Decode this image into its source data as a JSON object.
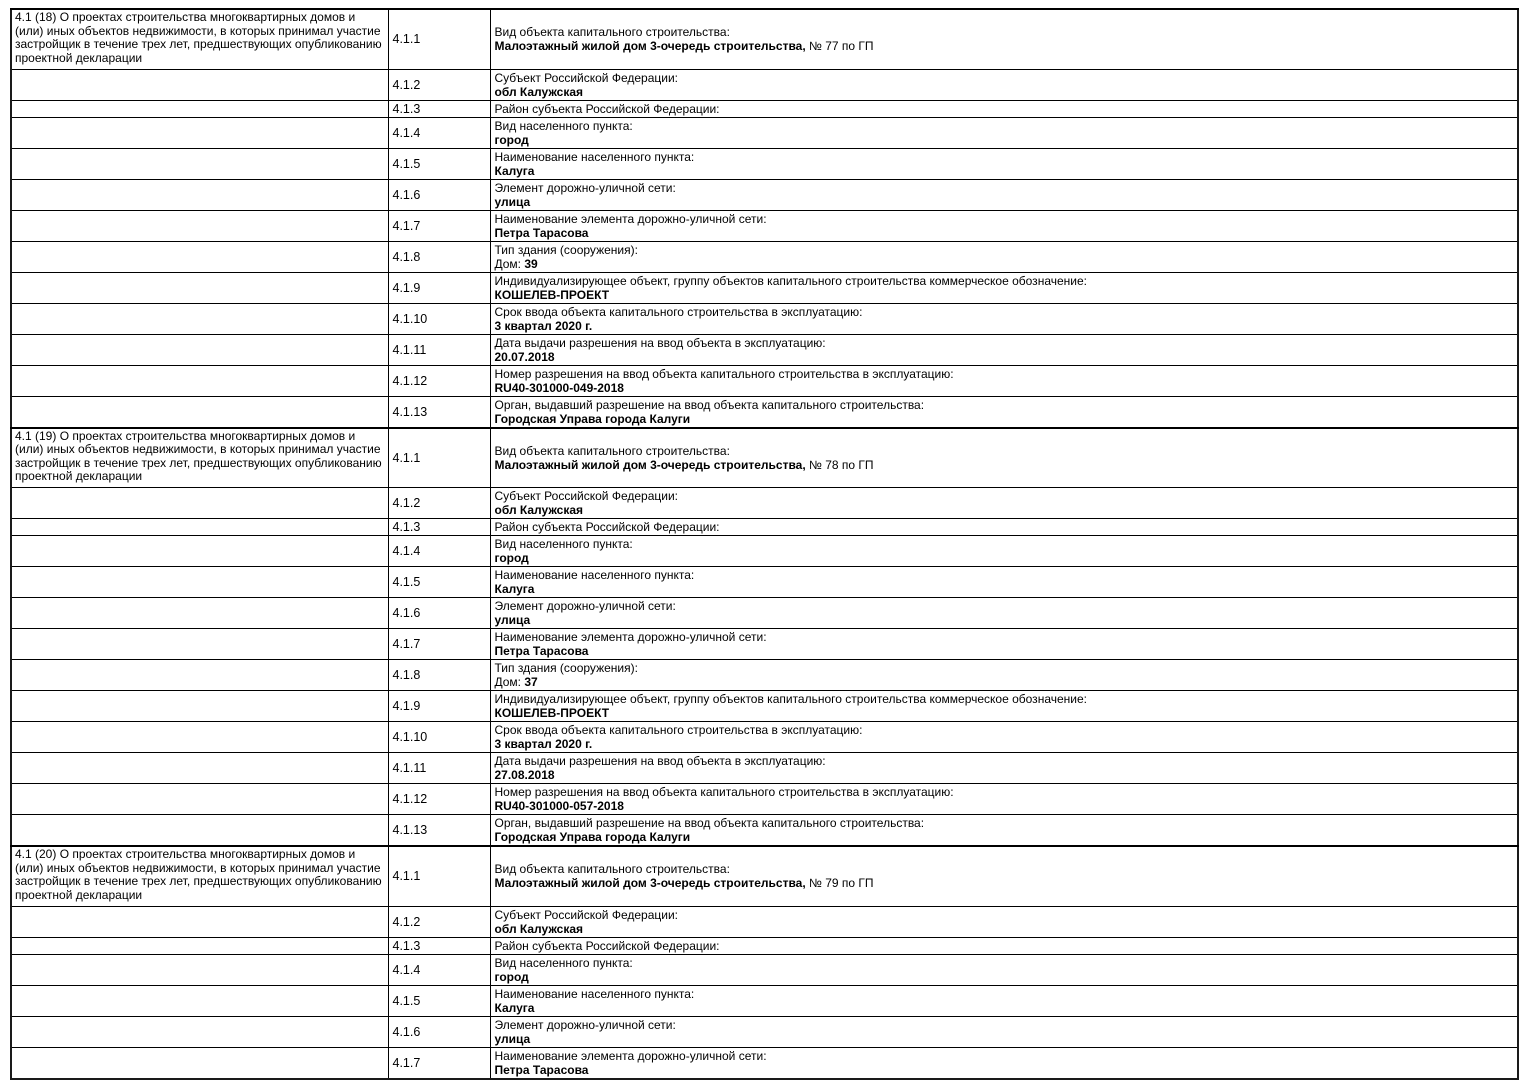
{
  "page": {
    "background": "#ffffff",
    "border_color": "#000000",
    "text_color": "#000000"
  },
  "table": {
    "columns": [
      "section-description",
      "item-code",
      "item-content"
    ],
    "sections": [
      {
        "header": "4.1 (18) О проектах строительства многоквартирных домов и (или) иных объектов недвижимости, в которых принимал участие застройщик в течение трех лет, предшествующих опубликованию проектной декларации",
        "rows": [
          {
            "code": "4.1.1",
            "label": "Вид объекта капитального строительства:",
            "pre": "",
            "value": "Малоэтажный жилой дом 3-очередь строительства,",
            "suffix": " № 77 по ГП"
          },
          {
            "code": "4.1.2",
            "label": "Субъект Российской Федерации:",
            "pre": "",
            "value": "обл Калужская",
            "suffix": ""
          },
          {
            "code": "4.1.3",
            "label": "Район субъекта Российской Федерации:",
            "pre": "",
            "value": "",
            "suffix": ""
          },
          {
            "code": "4.1.4",
            "label": "Вид населенного пункта:",
            "pre": "",
            "value": "город",
            "suffix": ""
          },
          {
            "code": "4.1.5",
            "label": "Наименование населенного пункта:",
            "pre": "",
            "value": "Калуга",
            "suffix": ""
          },
          {
            "code": "4.1.6",
            "label": "Элемент дорожно-уличной сети:",
            "pre": "",
            "value": "улица",
            "suffix": ""
          },
          {
            "code": "4.1.7",
            "label": "Наименование элемента дорожно-уличной сети:",
            "pre": "",
            "value": "Петра Тарасова",
            "suffix": ""
          },
          {
            "code": "4.1.8",
            "label": "Тип здания (сооружения):",
            "pre": "Дом: ",
            "value": "39",
            "suffix": ""
          },
          {
            "code": "4.1.9",
            "label": "Индивидуализирующее объект, группу объектов капитального строительства коммерческое обозначение:",
            "pre": "",
            "value": "КОШЕЛЕВ-ПРОЕКТ",
            "suffix": ""
          },
          {
            "code": "4.1.10",
            "label": "Срок ввода объекта капитального строительства в эксплуатацию:",
            "pre": "",
            "value": "3 квартал 2020 г.",
            "suffix": ""
          },
          {
            "code": "4.1.11",
            "label": "Дата выдачи разрешения на ввод объекта в эксплуатацию:",
            "pre": "",
            "value": "20.07.2018",
            "suffix": ""
          },
          {
            "code": "4.1.12",
            "label": "Номер разрешения на ввод объекта капитального строительства в эксплуатацию:",
            "pre": "",
            "value": "RU40-301000-049-2018",
            "suffix": ""
          },
          {
            "code": "4.1.13",
            "label": "Орган, выдавший разрешение на ввод объекта капитального строительства:",
            "pre": "",
            "value": "Городская Управа города Калуги",
            "suffix": ""
          }
        ]
      },
      {
        "header": "4.1 (19) О проектах строительства многоквартирных домов и (или) иных объектов недвижимости, в которых принимал участие застройщик в течение трех лет, предшествующих опубликованию проектной декларации",
        "rows": [
          {
            "code": "4.1.1",
            "label": "Вид объекта капитального строительства:",
            "pre": "",
            "value": "Малоэтажный жилой дом 3-очередь строительства,",
            "suffix": " № 78 по ГП"
          },
          {
            "code": "4.1.2",
            "label": "Субъект Российской Федерации:",
            "pre": "",
            "value": "обл Калужская",
            "suffix": ""
          },
          {
            "code": "4.1.3",
            "label": "Район субъекта Российской Федерации:",
            "pre": "",
            "value": "",
            "suffix": ""
          },
          {
            "code": "4.1.4",
            "label": "Вид населенного пункта:",
            "pre": "",
            "value": "город",
            "suffix": ""
          },
          {
            "code": "4.1.5",
            "label": "Наименование населенного пункта:",
            "pre": "",
            "value": "Калуга",
            "suffix": ""
          },
          {
            "code": "4.1.6",
            "label": "Элемент дорожно-уличной сети:",
            "pre": "",
            "value": "улица",
            "suffix": ""
          },
          {
            "code": "4.1.7",
            "label": "Наименование элемента дорожно-уличной сети:",
            "pre": "",
            "value": "Петра Тарасова",
            "suffix": ""
          },
          {
            "code": "4.1.8",
            "label": "Тип здания (сооружения):",
            "pre": "Дом: ",
            "value": "37",
            "suffix": ""
          },
          {
            "code": "4.1.9",
            "label": "Индивидуализирующее объект, группу объектов капитального строительства коммерческое обозначение:",
            "pre": "",
            "value": "КОШЕЛЕВ-ПРОЕКТ",
            "suffix": ""
          },
          {
            "code": "4.1.10",
            "label": "Срок ввода объекта капитального строительства в эксплуатацию:",
            "pre": "",
            "value": "3 квартал 2020 г.",
            "suffix": ""
          },
          {
            "code": "4.1.11",
            "label": "Дата выдачи разрешения на ввод объекта в эксплуатацию:",
            "pre": "",
            "value": "27.08.2018",
            "suffix": ""
          },
          {
            "code": "4.1.12",
            "label": "Номер разрешения на ввод объекта капитального строительства в эксплуатацию:",
            "pre": "",
            "value": "RU40-301000-057-2018",
            "suffix": ""
          },
          {
            "code": "4.1.13",
            "label": "Орган, выдавший разрешение на ввод объекта капитального строительства:",
            "pre": "",
            "value": "Городская Управа города Калуги",
            "suffix": ""
          }
        ]
      },
      {
        "header": "4.1 (20) О проектах строительства многоквартирных домов и (или) иных объектов недвижимости, в которых принимал участие застройщик в течение трех лет, предшествующих опубликованию проектной декларации",
        "rows": [
          {
            "code": "4.1.1",
            "label": "Вид объекта капитального строительства:",
            "pre": "",
            "value": "Малоэтажный жилой дом 3-очередь строительства,",
            "suffix": " № 79 по ГП"
          },
          {
            "code": "4.1.2",
            "label": "Субъект Российской Федерации:",
            "pre": "",
            "value": "обл Калужская",
            "suffix": ""
          },
          {
            "code": "4.1.3",
            "label": "Район субъекта Российской Федерации:",
            "pre": "",
            "value": "",
            "suffix": ""
          },
          {
            "code": "4.1.4",
            "label": "Вид населенного пункта:",
            "pre": "",
            "value": "город",
            "suffix": ""
          },
          {
            "code": "4.1.5",
            "label": "Наименование населенного пункта:",
            "pre": "",
            "value": "Калуга",
            "suffix": ""
          },
          {
            "code": "4.1.6",
            "label": "Элемент дорожно-уличной сети:",
            "pre": "",
            "value": "улица",
            "suffix": ""
          },
          {
            "code": "4.1.7",
            "label": "Наименование элемента дорожно-уличной сети:",
            "pre": "",
            "value": "Петра Тарасова",
            "suffix": ""
          }
        ]
      }
    ]
  }
}
